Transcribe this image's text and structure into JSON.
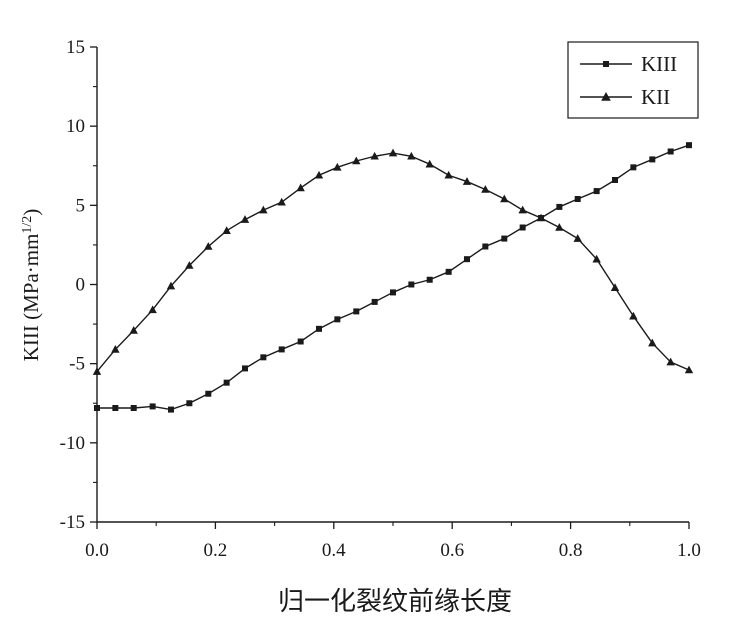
{
  "chart_data": {
    "type": "line",
    "title": "",
    "xlabel": "归一化裂纹前缘长度",
    "ylabel": "KIII (MPa·mm",
    "ylabel_sup": "1/2",
    "ylabel_close": ")",
    "xlim": [
      0.0,
      1.0
    ],
    "ylim": [
      -15,
      15
    ],
    "x_ticks": [
      "0.0",
      "0.2",
      "0.4",
      "0.6",
      "0.8",
      "1.0"
    ],
    "x_tick_values": [
      0.0,
      0.2,
      0.4,
      0.6,
      0.8,
      1.0
    ],
    "y_ticks": [
      "15",
      "10",
      "5",
      "0",
      "-5",
      "-10",
      "-15"
    ],
    "y_tick_values": [
      15,
      10,
      5,
      0,
      -5,
      -10,
      -15
    ],
    "grid": false,
    "legend_position": "top-right",
    "colors": {
      "line": "#1a1a1a",
      "axis": "#1a1a1a"
    },
    "series": [
      {
        "name": "KIII",
        "marker": "square",
        "x": [
          0.0,
          0.031,
          0.062,
          0.094,
          0.125,
          0.156,
          0.188,
          0.219,
          0.25,
          0.281,
          0.312,
          0.344,
          0.375,
          0.406,
          0.438,
          0.469,
          0.5,
          0.531,
          0.562,
          0.594,
          0.625,
          0.656,
          0.688,
          0.719,
          0.75,
          0.781,
          0.812,
          0.844,
          0.875,
          0.906,
          0.938,
          0.969,
          1.0
        ],
        "y": [
          -7.8,
          -7.8,
          -7.8,
          -7.7,
          -7.9,
          -7.5,
          -6.9,
          -6.2,
          -5.3,
          -4.6,
          -4.1,
          -3.6,
          -2.8,
          -2.2,
          -1.7,
          -1.1,
          -0.5,
          0.0,
          0.3,
          0.8,
          1.6,
          2.4,
          2.9,
          3.6,
          4.2,
          4.9,
          5.4,
          5.9,
          6.6,
          7.4,
          7.9,
          8.4,
          8.8
        ]
      },
      {
        "name": "KII",
        "marker": "triangle",
        "x": [
          0.0,
          0.031,
          0.062,
          0.094,
          0.125,
          0.156,
          0.188,
          0.219,
          0.25,
          0.281,
          0.312,
          0.344,
          0.375,
          0.406,
          0.438,
          0.469,
          0.5,
          0.531,
          0.562,
          0.594,
          0.625,
          0.656,
          0.688,
          0.719,
          0.75,
          0.781,
          0.812,
          0.844,
          0.875,
          0.906,
          0.938,
          0.969,
          1.0
        ],
        "y": [
          -5.5,
          -4.1,
          -2.9,
          -1.6,
          -0.1,
          1.2,
          2.4,
          3.4,
          4.1,
          4.7,
          5.2,
          6.1,
          6.9,
          7.4,
          7.8,
          8.1,
          8.3,
          8.1,
          7.6,
          6.9,
          6.5,
          6.0,
          5.4,
          4.7,
          4.2,
          3.6,
          2.9,
          1.6,
          -0.2,
          -2.0,
          -3.7,
          -4.9,
          -5.4
        ]
      }
    ]
  }
}
